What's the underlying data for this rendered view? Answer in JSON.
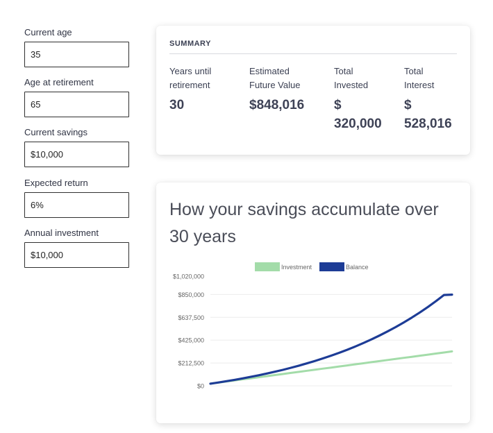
{
  "form": {
    "fields": [
      {
        "label": "Current age",
        "value": "35"
      },
      {
        "label": "Age at retirement",
        "value": "65"
      },
      {
        "label": "Current savings",
        "value": "$10,000"
      },
      {
        "label": "Expected return",
        "value": "6%"
      },
      {
        "label": "Annual investment",
        "value": "$10,000"
      }
    ]
  },
  "summary": {
    "title": "SUMMARY",
    "stats": [
      {
        "label_line1": "Years until",
        "label_line2": "retirement",
        "value_line1": "30",
        "value_line2": ""
      },
      {
        "label_line1": "Estimated",
        "label_line2": "Future Value",
        "value_line1": "$848,016",
        "value_line2": ""
      },
      {
        "label_line1": "Total",
        "label_line2": "Invested",
        "value_line1": "$",
        "value_line2": "320,000"
      },
      {
        "label_line1": "Total",
        "label_line2": "Interest",
        "value_line1": "$",
        "value_line2": "528,016"
      }
    ]
  },
  "chart_card": {
    "heading": "How your savings accumulate over 30 years"
  },
  "chart_data": {
    "type": "line",
    "title": "",
    "xlabel": "",
    "ylabel": "",
    "ylim": [
      0,
      1020000
    ],
    "yticks": [
      "$0",
      "$212,500",
      "$425,000",
      "$637,500",
      "$850,000",
      "$1,020,000"
    ],
    "ytick_values": [
      0,
      212500,
      425000,
      637500,
      850000,
      1020000
    ],
    "legend_position": "top",
    "grid": true,
    "x": [
      0,
      1,
      2,
      3,
      4,
      5,
      6,
      7,
      8,
      9,
      10,
      11,
      12,
      13,
      14,
      15,
      16,
      17,
      18,
      19,
      20,
      21,
      22,
      23,
      24,
      25,
      26,
      27,
      28,
      29,
      30
    ],
    "series": [
      {
        "name": "Investment",
        "color": "#a3dca9",
        "values": [
          20000,
          30000,
          40000,
          50000,
          60000,
          70000,
          80000,
          90000,
          100000,
          110000,
          120000,
          130000,
          140000,
          150000,
          160000,
          170000,
          180000,
          190000,
          200000,
          210000,
          220000,
          230000,
          240000,
          250000,
          260000,
          270000,
          280000,
          290000,
          300000,
          310000,
          320000
        ]
      },
      {
        "name": "Balance",
        "color": "#1d3c96",
        "values": [
          20000,
          31200,
          43072,
          55656,
          68995,
          83135,
          98123,
          114010,
          130851,
          148702,
          167624,
          187681,
          208942,
          231478,
          255367,
          280689,
          307530,
          335982,
          366141,
          398109,
          431996,
          467916,
          505991,
          546350,
          589131,
          634479,
          682548,
          733501,
          787511,
          844762,
          848016
        ]
      }
    ]
  }
}
